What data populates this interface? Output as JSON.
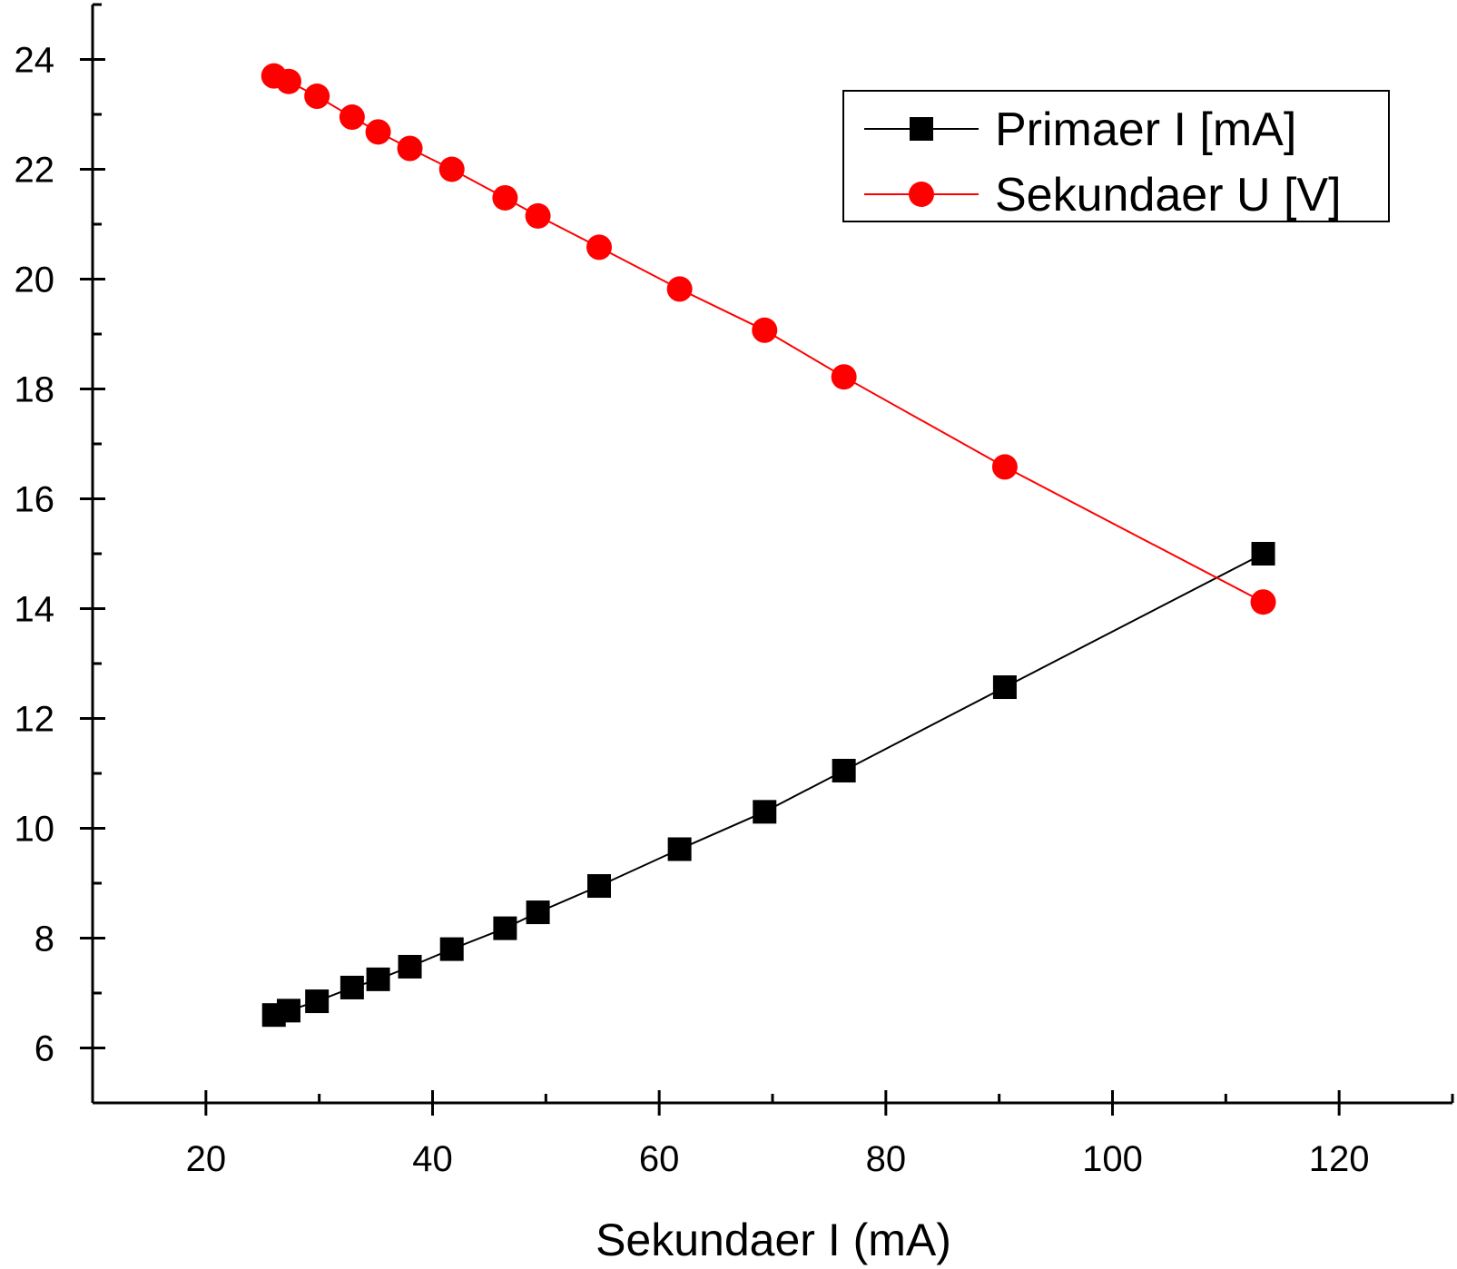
{
  "chart_data": {
    "type": "line",
    "xlabel": "Sekundaer I (mA)",
    "ylabel": "",
    "xlim": [
      10,
      130
    ],
    "ylim": [
      5,
      25
    ],
    "xticks": [
      "20",
      "40",
      "60",
      "80",
      "100",
      "120"
    ],
    "yticks": [
      "6",
      "8",
      "10",
      "12",
      "14",
      "16",
      "18",
      "20",
      "22",
      "24"
    ],
    "grid": false,
    "legend_position": "top-right",
    "x": [
      26.0,
      27.3,
      29.8,
      32.9,
      35.2,
      38.0,
      41.7,
      46.4,
      49.3,
      54.7,
      61.8,
      69.3,
      76.3,
      90.5,
      113.3
    ],
    "series": [
      {
        "name": "Primaer I [mA]",
        "color": "#000000",
        "marker": "square",
        "values": [
          6.6,
          6.68,
          6.85,
          7.1,
          7.25,
          7.48,
          7.8,
          8.18,
          8.47,
          8.95,
          9.62,
          10.3,
          11.05,
          12.57,
          15.0
        ]
      },
      {
        "name": "Sekundaer U [V]",
        "color": "#ff0000",
        "marker": "circle",
        "values": [
          23.7,
          23.6,
          23.33,
          22.95,
          22.68,
          22.38,
          22.0,
          21.48,
          21.15,
          20.58,
          19.82,
          19.07,
          18.22,
          16.58,
          14.12
        ]
      }
    ]
  }
}
